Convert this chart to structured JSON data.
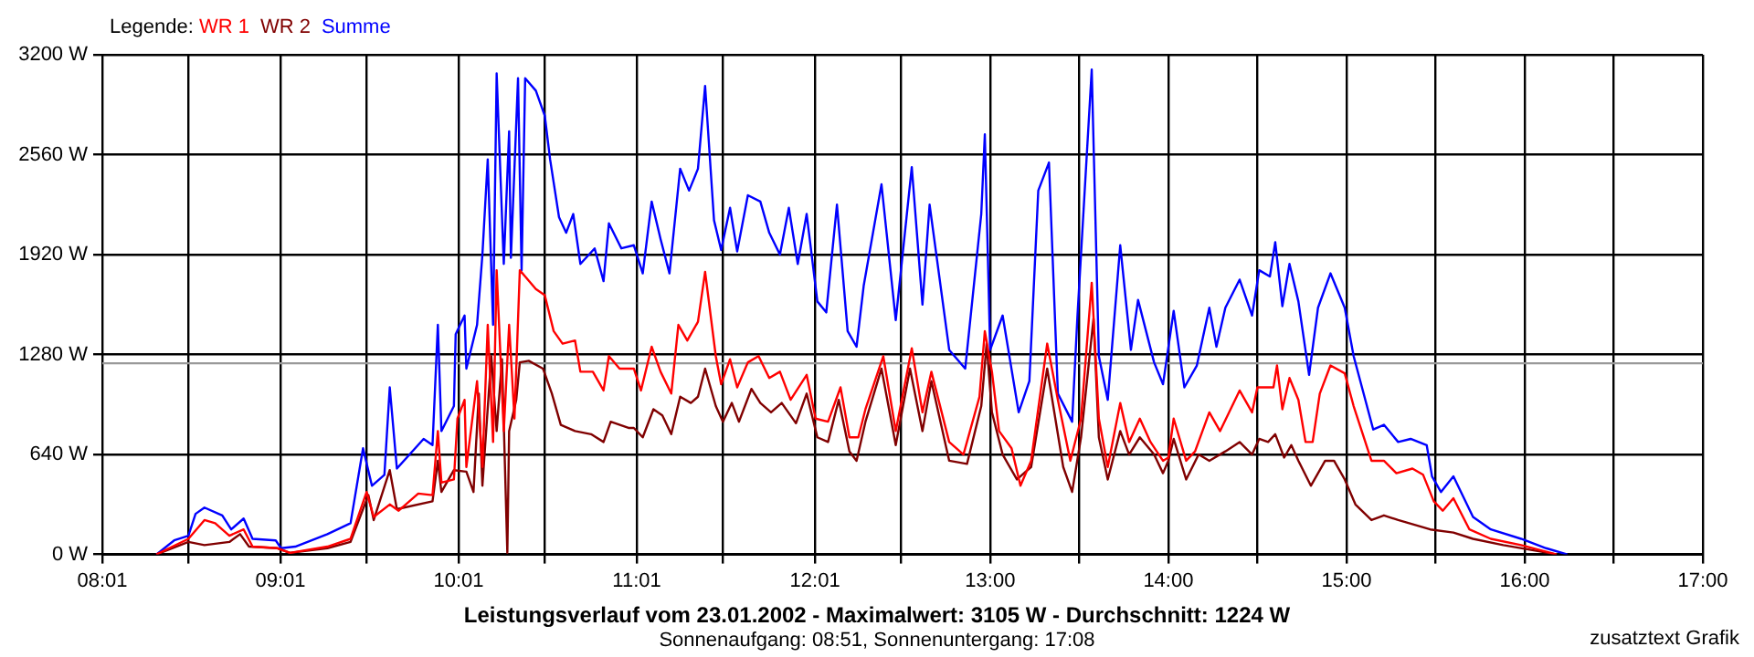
{
  "chart_data": {
    "type": "line",
    "title": "Leistungsverlauf vom 23.01.2002 - Maximalwert: 3105 W - Durchschnitt: 1224 W",
    "subtitle": "Sonnenaufgang: 08:51, Sonnenuntergang: 17:08",
    "legend_title": "Legende:",
    "annotations": [
      "zusatztext Grafik"
    ],
    "series": [
      {
        "name": "WR 1",
        "color": "#ff0000",
        "x": [
          8.32,
          8.5,
          8.59,
          8.65,
          8.73,
          8.81,
          8.86,
          9.0,
          9.07,
          9.28,
          9.41,
          9.5,
          9.54,
          9.63,
          9.68,
          9.79,
          9.87,
          9.9,
          9.92,
          9.99,
          10.01,
          10.05,
          10.06,
          10.12,
          10.15,
          10.18,
          10.21,
          10.23,
          10.27,
          10.3,
          10.33,
          10.36,
          10.39,
          10.45,
          10.5,
          10.55,
          10.6,
          10.67,
          10.7,
          10.77,
          10.83,
          10.86,
          10.92,
          11.0,
          11.04,
          11.1,
          11.15,
          11.21,
          11.25,
          11.3,
          11.36,
          11.4,
          11.46,
          11.49,
          11.54,
          11.58,
          11.64,
          11.7,
          11.76,
          11.82,
          11.88,
          11.97,
          12.02,
          12.09,
          12.16,
          12.21,
          12.26,
          12.3,
          12.4,
          12.47,
          12.56,
          12.62,
          12.67,
          12.77,
          12.85,
          12.94,
          12.97,
          13.01,
          13.05,
          13.12,
          13.17,
          13.23,
          13.32,
          13.38,
          13.45,
          13.51,
          13.57,
          13.61,
          13.66,
          13.73,
          13.78,
          13.84,
          13.9,
          13.97,
          14.0,
          14.03,
          14.1,
          14.15,
          14.23,
          14.29,
          14.4,
          14.47,
          14.5,
          14.59,
          14.61,
          14.64,
          14.68,
          14.73,
          14.77,
          14.81,
          14.85,
          14.91,
          14.99,
          15.04,
          15.14,
          15.21,
          15.28,
          15.37,
          15.43,
          15.49,
          15.54,
          15.6,
          15.69,
          15.81,
          15.98,
          16.18
        ],
        "values": [
          0,
          100,
          220,
          200,
          120,
          160,
          50,
          40,
          10,
          50,
          100,
          400,
          240,
          320,
          280,
          390,
          380,
          790,
          460,
          480,
          870,
          990,
          560,
          1110,
          560,
          1470,
          720,
          1820,
          790,
          1470,
          870,
          1820,
          1780,
          1700,
          1660,
          1430,
          1350,
          1370,
          1170,
          1170,
          1050,
          1270,
          1190,
          1190,
          1050,
          1330,
          1170,
          1030,
          1470,
          1370,
          1490,
          1810,
          1270,
          1090,
          1250,
          1070,
          1230,
          1270,
          1130,
          1170,
          990,
          1150,
          870,
          850,
          1070,
          750,
          750,
          930,
          1270,
          790,
          1320,
          910,
          1170,
          720,
          640,
          1010,
          1430,
          1170,
          790,
          680,
          440,
          600,
          1350,
          990,
          600,
          870,
          1740,
          870,
          560,
          970,
          720,
          870,
          720,
          600,
          620,
          870,
          600,
          660,
          910,
          790,
          1050,
          910,
          1070,
          1070,
          1210,
          930,
          1130,
          990,
          720,
          720,
          1030,
          1210,
          1160,
          950,
          600,
          600,
          520,
          550,
          510,
          340,
          280,
          360,
          160,
          100,
          60,
          0
        ]
      },
      {
        "name": "WR 2",
        "color": "#800000",
        "x": [
          8.32,
          8.5,
          8.59,
          8.73,
          8.79,
          8.84,
          9.0,
          9.07,
          9.28,
          9.41,
          9.51,
          9.54,
          9.63,
          9.67,
          9.87,
          9.9,
          9.92,
          9.99,
          10.06,
          10.1,
          10.13,
          10.15,
          10.2,
          10.23,
          10.26,
          10.29,
          10.3,
          10.34,
          10.36,
          10.41,
          10.49,
          10.54,
          10.59,
          10.67,
          10.76,
          10.83,
          10.87,
          10.97,
          11.0,
          11.05,
          11.11,
          11.16,
          11.21,
          11.26,
          11.32,
          11.36,
          11.4,
          11.46,
          11.5,
          11.55,
          11.59,
          11.66,
          11.71,
          11.77,
          11.83,
          11.91,
          11.97,
          12.03,
          12.09,
          12.15,
          12.21,
          12.25,
          12.3,
          12.39,
          12.47,
          12.55,
          12.62,
          12.67,
          12.77,
          12.87,
          12.95,
          12.98,
          13.01,
          13.07,
          13.15,
          13.23,
          13.32,
          13.41,
          13.46,
          13.51,
          13.58,
          13.61,
          13.66,
          13.73,
          13.78,
          13.84,
          13.92,
          13.97,
          14.0,
          14.03,
          14.1,
          14.17,
          14.23,
          14.32,
          14.4,
          14.47,
          14.51,
          14.56,
          14.6,
          14.65,
          14.69,
          14.73,
          14.8,
          14.88,
          14.93,
          14.99,
          15.05,
          15.14,
          15.21,
          15.29,
          15.47,
          15.6,
          15.71,
          15.88,
          16.08,
          16.18
        ],
        "values": [
          0,
          80,
          60,
          80,
          130,
          50,
          40,
          10,
          40,
          80,
          380,
          220,
          540,
          290,
          340,
          600,
          400,
          540,
          530,
          400,
          1030,
          440,
          1270,
          790,
          1250,
          10,
          790,
          990,
          1230,
          1240,
          1190,
          1030,
          830,
          790,
          770,
          720,
          850,
          810,
          810,
          750,
          930,
          890,
          770,
          1010,
          970,
          1010,
          1190,
          950,
          850,
          970,
          850,
          1060,
          970,
          910,
          970,
          840,
          1030,
          750,
          720,
          990,
          660,
          600,
          850,
          1190,
          700,
          1190,
          790,
          1110,
          600,
          580,
          950,
          1350,
          910,
          640,
          480,
          560,
          1190,
          560,
          400,
          750,
          1510,
          750,
          480,
          790,
          640,
          750,
          640,
          520,
          600,
          740,
          480,
          640,
          600,
          660,
          720,
          640,
          740,
          720,
          770,
          620,
          700,
          600,
          440,
          600,
          600,
          480,
          320,
          220,
          250,
          220,
          160,
          140,
          100,
          60,
          20,
          0
        ]
      },
      {
        "name": "Summe",
        "color": "#0000ff",
        "x": [
          8.32,
          8.42,
          8.5,
          8.54,
          8.59,
          8.69,
          8.74,
          8.81,
          8.86,
          8.99,
          9.02,
          9.1,
          9.28,
          9.41,
          9.48,
          9.53,
          9.6,
          9.63,
          9.67,
          9.82,
          9.87,
          9.9,
          9.92,
          9.99,
          10.0,
          10.05,
          10.06,
          10.12,
          10.15,
          10.18,
          10.21,
          10.23,
          10.27,
          10.3,
          10.31,
          10.35,
          10.37,
          10.39,
          10.45,
          10.5,
          10.53,
          10.58,
          10.62,
          10.66,
          10.7,
          10.78,
          10.83,
          10.86,
          10.93,
          11.0,
          11.05,
          11.1,
          11.15,
          11.2,
          11.26,
          11.31,
          11.36,
          11.4,
          11.45,
          11.49,
          11.54,
          11.58,
          11.64,
          11.71,
          11.76,
          11.82,
          11.87,
          11.92,
          11.97,
          12.03,
          12.08,
          12.14,
          12.2,
          12.25,
          12.29,
          12.39,
          12.47,
          12.56,
          12.62,
          12.66,
          12.77,
          12.86,
          12.95,
          12.97,
          13.0,
          13.07,
          13.16,
          13.22,
          13.27,
          13.33,
          13.38,
          13.46,
          13.49,
          13.57,
          13.61,
          13.66,
          13.73,
          13.79,
          13.83,
          13.92,
          13.97,
          14.03,
          14.09,
          14.16,
          14.23,
          14.27,
          14.32,
          14.4,
          14.47,
          14.51,
          14.57,
          14.6,
          14.64,
          14.68,
          14.73,
          14.79,
          14.84,
          14.91,
          14.99,
          15.04,
          15.15,
          15.21,
          15.29,
          15.36,
          15.45,
          15.48,
          15.53,
          15.6,
          15.71,
          15.81,
          15.98,
          16.12,
          16.24
        ],
        "values": [
          0,
          90,
          120,
          260,
          300,
          250,
          160,
          230,
          100,
          90,
          40,
          50,
          130,
          200,
          680,
          440,
          510,
          1070,
          550,
          740,
          700,
          1470,
          790,
          950,
          1410,
          1530,
          1190,
          1470,
          1920,
          2530,
          1470,
          3080,
          1860,
          2710,
          1900,
          3050,
          1820,
          3050,
          2970,
          2810,
          2530,
          2160,
          2060,
          2180,
          1860,
          1960,
          1750,
          2120,
          1960,
          1980,
          1800,
          2260,
          2020,
          1800,
          2470,
          2330,
          2470,
          3000,
          2140,
          1950,
          2220,
          1940,
          2300,
          2260,
          2060,
          1920,
          2220,
          1860,
          2180,
          1620,
          1550,
          2240,
          1430,
          1330,
          1720,
          2370,
          1500,
          2480,
          1600,
          2240,
          1310,
          1190,
          2180,
          2690,
          1310,
          1530,
          910,
          1110,
          2330,
          2510,
          1030,
          850,
          1530,
          3105,
          1270,
          990,
          1980,
          1310,
          1630,
          1230,
          1090,
          1560,
          1070,
          1210,
          1580,
          1330,
          1580,
          1760,
          1530,
          1820,
          1780,
          2000,
          1590,
          1860,
          1620,
          1150,
          1580,
          1800,
          1580,
          1270,
          800,
          830,
          720,
          740,
          700,
          500,
          400,
          500,
          240,
          160,
          100,
          40,
          0
        ]
      }
    ],
    "xlim": [
      8.0167,
      17
    ],
    "xticks": [
      {
        "value": 8.0167,
        "label": "08:01"
      },
      {
        "value": 8.5,
        "label": null
      },
      {
        "value": 9.0167,
        "label": "09:01"
      },
      {
        "value": 9.5,
        "label": null
      },
      {
        "value": 10.0167,
        "label": "10:01"
      },
      {
        "value": 10.5,
        "label": null
      },
      {
        "value": 11.0167,
        "label": "11:01"
      },
      {
        "value": 11.5,
        "label": null
      },
      {
        "value": 12.0167,
        "label": "12:01"
      },
      {
        "value": 12.5,
        "label": null
      },
      {
        "value": 13,
        "label": "13:00"
      },
      {
        "value": 13.5,
        "label": null
      },
      {
        "value": 14,
        "label": "14:00"
      },
      {
        "value": 14.5,
        "label": null
      },
      {
        "value": 15,
        "label": "15:00"
      },
      {
        "value": 15.5,
        "label": null
      },
      {
        "value": 16,
        "label": "16:00"
      },
      {
        "value": 16.5,
        "label": null
      },
      {
        "value": 17,
        "label": "17:00"
      }
    ],
    "ylim": [
      0,
      3200
    ],
    "yticks": [
      {
        "value": 0,
        "label": "0 W"
      },
      {
        "value": 640,
        "label": "640 W"
      },
      {
        "value": 1280,
        "label": "1280 W"
      },
      {
        "value": 1920,
        "label": "1920 W"
      },
      {
        "value": 2560,
        "label": "2560 W"
      },
      {
        "value": 3200,
        "label": "3200 W"
      }
    ],
    "ref_lines": [
      {
        "axis": "y",
        "value": 1224,
        "color": "#999999"
      }
    ],
    "grid": true,
    "legend": "top left",
    "marker": "none",
    "line_style": "solid"
  }
}
